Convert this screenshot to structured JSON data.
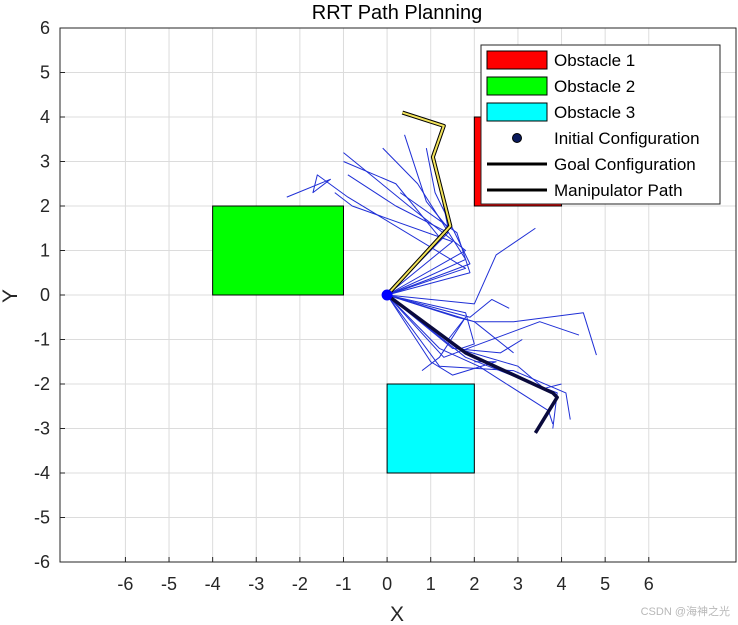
{
  "chart_data": {
    "type": "line",
    "title": "RRT Path Planning",
    "xlabel": "X",
    "ylabel": "Y",
    "xlim": [
      -7.5,
      8
    ],
    "ylim": [
      -6,
      6
    ],
    "xticks": [
      -6,
      -5,
      -4,
      -3,
      -2,
      -1,
      0,
      1,
      2,
      3,
      4,
      5,
      6
    ],
    "yticks": [
      -6,
      -5,
      -4,
      -3,
      -2,
      -1,
      0,
      1,
      2,
      3,
      4,
      5,
      6
    ],
    "grid": true,
    "legend_position": "top-right",
    "obstacles": [
      {
        "name": "Obstacle 1",
        "x": 2,
        "y": 2,
        "width": 2,
        "height": 2,
        "color": "#ff0000"
      },
      {
        "name": "Obstacle 2",
        "x": -4,
        "y": 0,
        "width": 3,
        "height": 2,
        "color": "#00ff00"
      },
      {
        "name": "Obstacle 3",
        "x": 0,
        "y": -4,
        "width": 2,
        "height": 2,
        "color": "#00ffff"
      }
    ],
    "initial_configuration": {
      "name": "Initial Configuration",
      "x": 0,
      "y": 0,
      "color": "#0000ff"
    },
    "goal_configuration": {
      "name": "Goal Configuration",
      "color": "#f2e35a",
      "points": [
        [
          0,
          0
        ],
        [
          1.45,
          1.55
        ],
        [
          1.05,
          3.1
        ],
        [
          1.3,
          3.8
        ],
        [
          0.35,
          4.1
        ]
      ]
    },
    "manipulator_path": {
      "name": "Manipulator Path",
      "color": "#0a0a3c",
      "points": [
        [
          0,
          0
        ],
        [
          1.8,
          -1.3
        ],
        [
          3.8,
          -2.2
        ],
        [
          3.9,
          -2.3
        ],
        [
          3.4,
          -3.1
        ]
      ]
    },
    "tree_branches": {
      "color": "#1f2fd6",
      "paths": [
        [
          [
            0,
            0
          ],
          [
            1.4,
            1.5
          ],
          [
            1.05,
            3.2
          ],
          [
            1.3,
            3.8
          ],
          [
            0.35,
            4.1
          ]
        ],
        [
          [
            0,
            0
          ],
          [
            1.4,
            1.5
          ],
          [
            0.9,
            2.1
          ],
          [
            0.4,
            3.6
          ]
        ],
        [
          [
            0,
            0
          ],
          [
            1.2,
            1.3
          ],
          [
            0.2,
            2.5
          ],
          [
            -1.0,
            3.0
          ]
        ],
        [
          [
            0,
            0
          ],
          [
            1.5,
            1.2
          ],
          [
            -0.8,
            2.0
          ],
          [
            -1.2,
            2.3
          ]
        ],
        [
          [
            0,
            0
          ],
          [
            1.4,
            1.4
          ],
          [
            0.2,
            2.0
          ],
          [
            -0.9,
            2.7
          ]
        ],
        [
          [
            0,
            0
          ],
          [
            1.8,
            0.8
          ],
          [
            0.7,
            2.5
          ],
          [
            -0.1,
            3.3
          ]
        ],
        [
          [
            0,
            0
          ],
          [
            1.8,
            1.0
          ],
          [
            0.5,
            2.0
          ],
          [
            -1.0,
            3.2
          ]
        ],
        [
          [
            0,
            0
          ],
          [
            1.9,
            0.7
          ],
          [
            1.1,
            2.3
          ],
          [
            0.9,
            3.3
          ]
        ],
        [
          [
            0,
            0
          ],
          [
            1.8,
            0.6
          ],
          [
            -0.9,
            2.2
          ],
          [
            -1.6,
            2.7
          ],
          [
            -1.7,
            2.3
          ],
          [
            -1.3,
            2.6
          ],
          [
            -2.3,
            2.2
          ]
        ],
        [
          [
            0,
            0
          ],
          [
            1.9,
            0.5
          ],
          [
            1.6,
            1.4
          ],
          [
            0.3,
            2.3
          ]
        ],
        [
          [
            0,
            0
          ],
          [
            2.0,
            -0.2
          ],
          [
            2.5,
            0.9
          ],
          [
            3.4,
            1.5
          ]
        ],
        [
          [
            0,
            0
          ],
          [
            1.9,
            -0.5
          ],
          [
            2.4,
            -0.1
          ],
          [
            2.8,
            -0.3
          ]
        ],
        [
          [
            0,
            0
          ],
          [
            2.0,
            -0.6
          ],
          [
            2.9,
            -0.6
          ],
          [
            4.5,
            -0.4
          ],
          [
            4.8,
            -1.35
          ]
        ],
        [
          [
            0,
            0
          ],
          [
            1.3,
            -1.4
          ],
          [
            3.5,
            -0.6
          ],
          [
            4.4,
            -0.9
          ]
        ],
        [
          [
            0,
            0
          ],
          [
            1.5,
            -1.2
          ],
          [
            2.6,
            -1.3
          ],
          [
            3.1,
            -1.0
          ]
        ],
        [
          [
            0,
            0
          ],
          [
            1.8,
            -1.4
          ],
          [
            3.9,
            -2.2
          ],
          [
            3.8,
            -3.0
          ]
        ],
        [
          [
            0,
            0
          ],
          [
            1.2,
            -1.6
          ],
          [
            2.9,
            -1.7
          ],
          [
            4.1,
            -2.2
          ],
          [
            4.2,
            -2.8
          ]
        ],
        [
          [
            0,
            0
          ],
          [
            1.6,
            -1.2
          ],
          [
            3.0,
            -1.6
          ],
          [
            3.6,
            -2.1
          ],
          [
            4.0,
            -2.0
          ]
        ],
        [
          [
            0,
            0
          ],
          [
            1.2,
            -1.2
          ],
          [
            2.1,
            -1.6
          ],
          [
            3.7,
            -2.6
          ],
          [
            3.8,
            -2.9
          ]
        ],
        [
          [
            0,
            0
          ],
          [
            1.0,
            -1.5
          ],
          [
            1.5,
            -1.8
          ],
          [
            2.5,
            -1.5
          ],
          [
            2.0,
            -1.5
          ]
        ],
        [
          [
            0,
            0
          ],
          [
            1.6,
            -0.5
          ],
          [
            2.0,
            -0.6
          ],
          [
            2.9,
            -1.3
          ]
        ],
        [
          [
            0,
            0
          ],
          [
            1.4,
            -1.0
          ],
          [
            1.8,
            -0.5
          ],
          [
            1.2,
            -1.4
          ],
          [
            0.8,
            -1.7
          ]
        ],
        [
          [
            0,
            0
          ],
          [
            1.8,
            -0.4
          ],
          [
            2.0,
            -1.1
          ],
          [
            1.7,
            -1.2
          ]
        ]
      ]
    }
  },
  "watermark": "CSDN @海神之光"
}
